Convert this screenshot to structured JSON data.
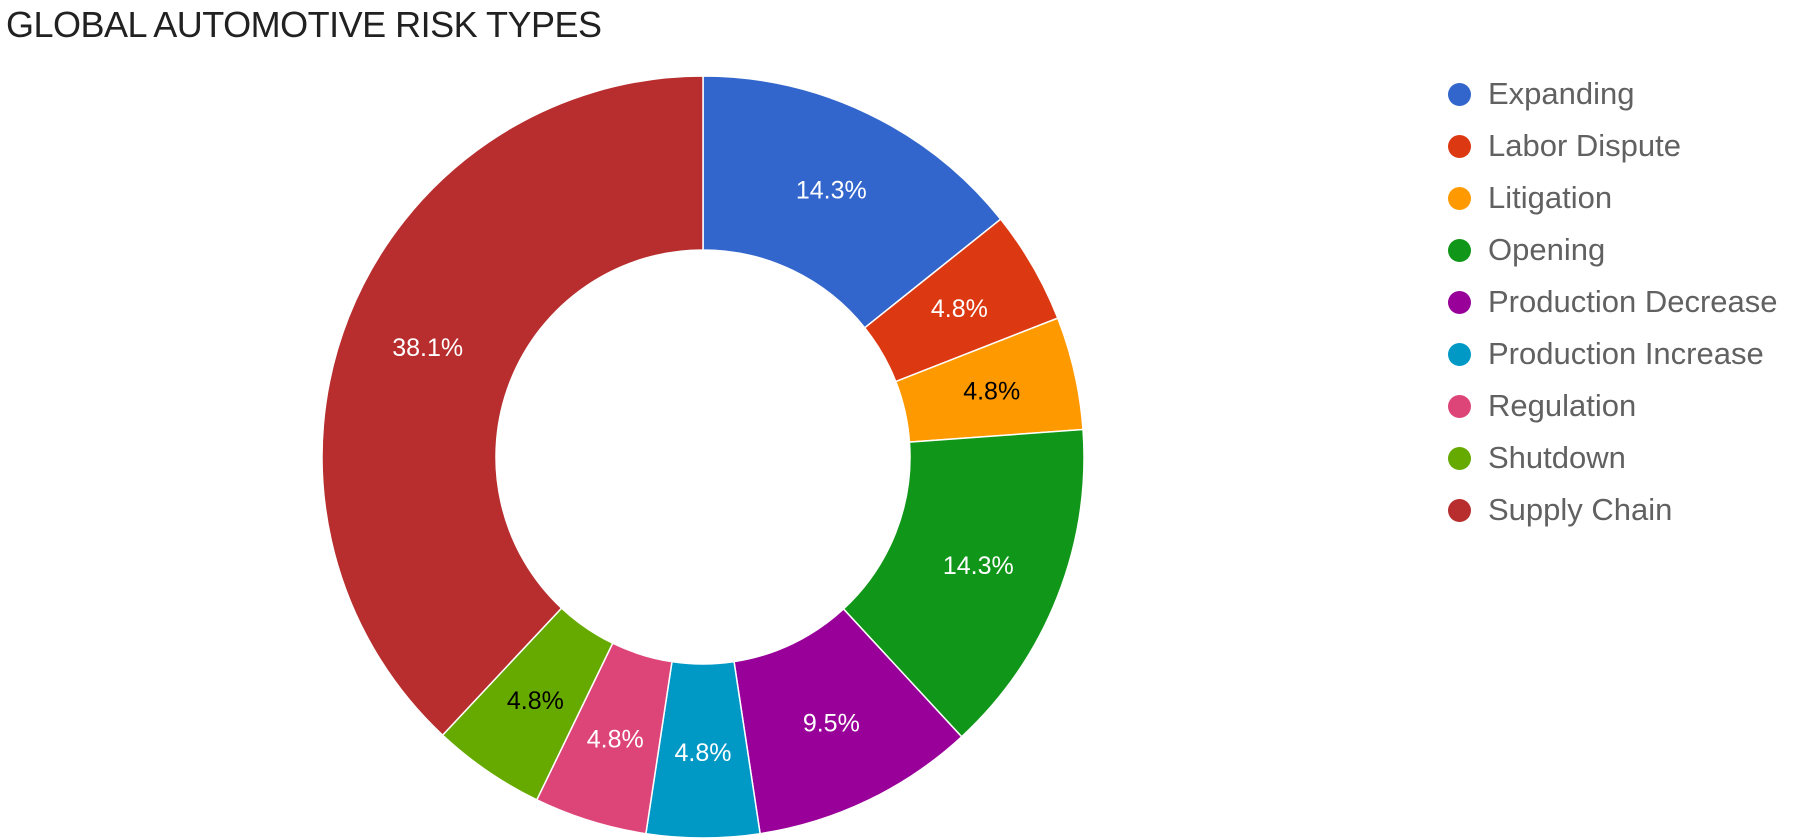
{
  "chart_data": {
    "type": "pie",
    "donut": true,
    "title": "GLOBAL AUTOMOTIVE RISK TYPES",
    "legend_position": "right",
    "categories": [
      "Expanding",
      "Labor Dispute",
      "Litigation",
      "Opening",
      "Production Decrease",
      "Production Increase",
      "Regulation",
      "Shutdown",
      "Supply Chain"
    ],
    "values": [
      14.3,
      4.8,
      4.8,
      14.3,
      9.5,
      4.8,
      4.8,
      4.8,
      38.1
    ],
    "labels": [
      "14.3%",
      "4.8%",
      "4.8%",
      "14.3%",
      "9.5%",
      "4.8%",
      "4.8%",
      "4.8%",
      "38.1%"
    ],
    "colors": [
      "#3366cc",
      "#dc3912",
      "#ff9900",
      "#109618",
      "#990099",
      "#0099c6",
      "#dd4477",
      "#66aa00",
      "#b82e2e"
    ],
    "label_colors": [
      "#ffffff",
      "#ffffff",
      "#000000",
      "#ffffff",
      "#ffffff",
      "#ffffff",
      "#ffffff",
      "#000000",
      "#ffffff"
    ]
  }
}
